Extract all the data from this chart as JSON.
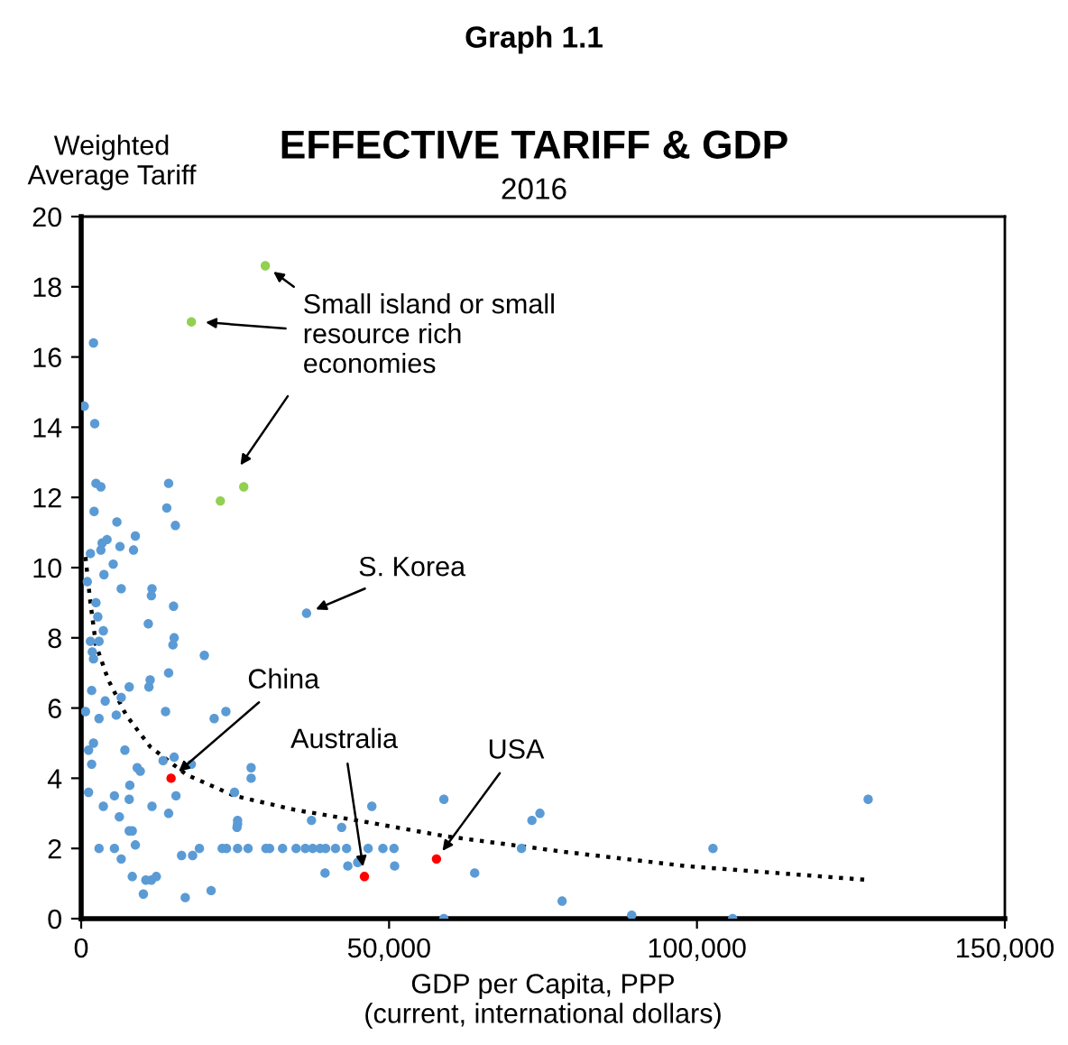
{
  "chart_data": {
    "type": "scatter",
    "title": "EFFECTIVE TARIFF & GDP",
    "subtitle": "2016",
    "xlabel": "GDP per Capita, PPP\n(current, international dollars)",
    "ylabel": "Weighted\nAverage Tariff",
    "xlim": [
      0,
      150000
    ],
    "xticks": [
      {
        "value": 0,
        "label": "0"
      },
      {
        "value": 50000,
        "label": "50,000"
      },
      {
        "value": 100000,
        "label": "100,000"
      },
      {
        "value": 150000,
        "label": "150,000"
      }
    ],
    "ylim": [
      0,
      20
    ],
    "yticks": [
      0,
      2,
      4,
      6,
      8,
      10,
      12,
      14,
      16,
      18,
      20
    ],
    "grid": false,
    "legend": false,
    "marker": "circle",
    "series": [
      {
        "color": "#5b9bd5",
        "x": [
          1500,
          3200,
          6300,
          8500,
          5200,
          3700,
          1000,
          2400,
          2700,
          3600,
          1500,
          2900,
          1800,
          2000,
          6500,
          11500,
          11400,
          10900,
          15000,
          15100,
          14900,
          20000,
          14200,
          11200,
          11000,
          7800,
          6500,
          3900,
          1700,
          700,
          2900,
          5700,
          13700,
          21600,
          23500,
          2000,
          1200,
          1700,
          7100,
          9100,
          9600,
          13300,
          15100,
          17900,
          27600,
          27600,
          1200,
          3600,
          5400,
          7900,
          7800,
          6200,
          7800,
          8300,
          8800,
          11500,
          14200,
          15400,
          24900,
          25400,
          25400,
          25300,
          37400,
          42300,
          47200,
          2900,
          5400,
          6500,
          8300,
          10500,
          11400,
          12200,
          10100,
          16900,
          21100,
          16300,
          18100,
          19200,
          22900,
          23600,
          25400,
          27100,
          30000,
          30600,
          32700,
          34900,
          36400,
          37600,
          38800,
          39700,
          41300,
          43100,
          46600,
          49000,
          50800,
          39600,
          43300,
          44900,
          2000,
          500,
          2200,
          2400,
          3200,
          2100,
          14200,
          13900,
          15300,
          5800,
          3400,
          4200,
          8800,
          58900,
          50900,
          63900,
          71500,
          73200,
          74500,
          78100,
          58900,
          89400,
          102600,
          127800,
          105800,
          36600
        ],
        "values": [
          10.4,
          10.5,
          10.6,
          10.5,
          10.1,
          9.8,
          9.6,
          9.0,
          8.6,
          8.2,
          7.9,
          7.9,
          7.6,
          7.4,
          9.4,
          9.4,
          9.2,
          8.4,
          8.9,
          8.0,
          7.8,
          7.5,
          7.0,
          6.8,
          6.6,
          6.6,
          6.3,
          6.2,
          6.5,
          5.9,
          5.7,
          5.8,
          5.9,
          5.7,
          5.9,
          5.0,
          4.8,
          4.4,
          4.8,
          4.3,
          4.2,
          4.5,
          4.6,
          4.4,
          4.3,
          4.0,
          3.6,
          3.2,
          3.5,
          3.8,
          3.4,
          2.9,
          2.5,
          2.5,
          2.1,
          3.2,
          3.0,
          3.5,
          3.6,
          2.8,
          2.7,
          2.6,
          2.8,
          2.6,
          3.2,
          2.0,
          2.0,
          1.7,
          1.2,
          1.1,
          1.1,
          1.2,
          0.7,
          0.6,
          0.8,
          1.8,
          1.8,
          2.0,
          2.0,
          2.0,
          2.0,
          2.0,
          2.0,
          2.0,
          2.0,
          2.0,
          2.0,
          2.0,
          2.0,
          2.0,
          2.0,
          2.0,
          2.0,
          2.0,
          2.0,
          1.3,
          1.5,
          1.6,
          16.4,
          14.6,
          14.1,
          12.4,
          12.3,
          11.6,
          12.4,
          11.7,
          11.2,
          11.3,
          10.7,
          10.8,
          10.9,
          3.4,
          1.5,
          1.3,
          2.0,
          2.8,
          3.0,
          0.5,
          0.0,
          0.1,
          2.0,
          3.4,
          0.0,
          8.7
        ]
      },
      {
        "color": "#92d050",
        "x": [
          29900,
          17900,
          22600,
          26400
        ],
        "values": [
          18.6,
          17.0,
          11.9,
          12.3
        ]
      },
      {
        "color": "#ff0000",
        "x": [
          14600,
          46000,
          57700
        ],
        "values": [
          4.0,
          1.2,
          1.7
        ]
      },
      {
        "type": "line",
        "color": "#000000",
        "line_style": "dotted",
        "marker": "none",
        "x": [
          700,
          1500,
          2400,
          4400,
          7300,
          11200,
          17100,
          24900,
          34700,
          46400,
          59100,
          78600,
          98100,
          127900
        ],
        "values": [
          10.3,
          9.0,
          7.8,
          6.8,
          5.8,
          4.9,
          4.1,
          3.5,
          3.1,
          2.75,
          2.35,
          1.9,
          1.5,
          1.1
        ]
      }
    ],
    "annotations": [
      {
        "text": "Small island or small\nresource rich\neconomies",
        "x": 29900,
        "y": 18.6
      },
      {
        "text": "S. Korea",
        "x": 36600,
        "y": 8.7
      },
      {
        "text": "China",
        "x": 14600,
        "y": 4.0
      },
      {
        "text": "Australia",
        "x": 46000,
        "y": 1.2
      },
      {
        "text": "USA",
        "x": 57700,
        "y": 1.7
      },
      "Graph 1.1"
    ]
  }
}
